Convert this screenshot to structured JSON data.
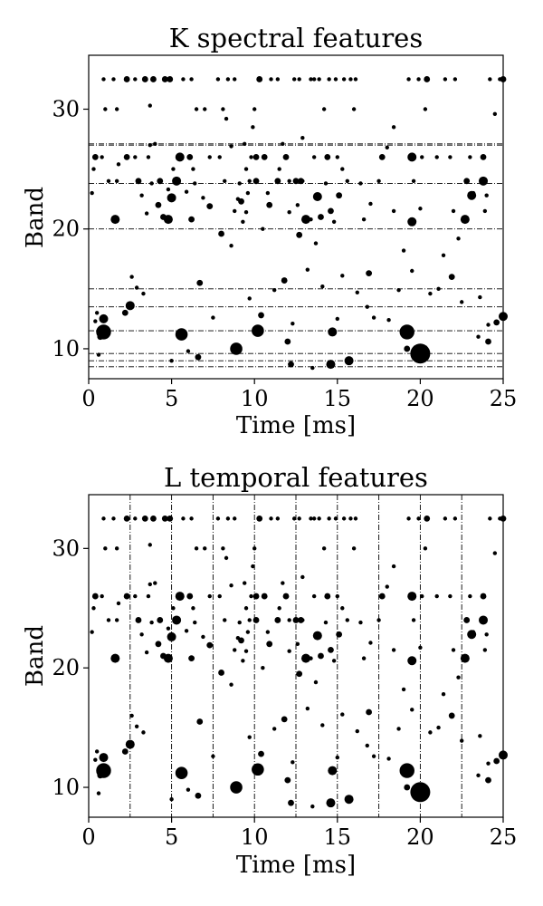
{
  "chart_data": [
    {
      "type": "scatter",
      "title": "K spectral features",
      "xlabel": "Time [ms]",
      "ylabel": "Band",
      "xlim": [
        0,
        25
      ],
      "ylim": [
        7.5,
        34.5
      ],
      "xticks": [
        0,
        5,
        10,
        15,
        20,
        25
      ],
      "yticks": [
        10,
        20,
        30
      ],
      "grid": false,
      "reference_lines": {
        "orientation": "horizontal",
        "style": "dash-dot",
        "values": [
          8.5,
          9,
          9.6,
          11.5,
          13.5,
          15,
          20,
          23.8,
          27,
          27.1
        ]
      }
    },
    {
      "type": "scatter",
      "title": "L temporal features",
      "xlabel": "Time [ms]",
      "ylabel": "Band",
      "xlim": [
        0,
        25
      ],
      "ylim": [
        7.5,
        34.5
      ],
      "xticks": [
        0,
        5,
        10,
        15,
        20,
        25
      ],
      "yticks": [
        10,
        20,
        30
      ],
      "grid": false,
      "reference_lines": {
        "orientation": "vertical",
        "style": "dash-dot",
        "values": [
          2.5,
          5,
          7.5,
          10,
          12.5,
          15,
          17.5,
          20,
          22.5
        ]
      }
    }
  ],
  "points": [
    [
      0.2,
      23,
      1
    ],
    [
      0.3,
      25,
      1
    ],
    [
      0.4,
      26,
      2
    ],
    [
      0.5,
      13,
      1
    ],
    [
      0.6,
      9.5,
      1
    ],
    [
      0.7,
      11,
      2
    ],
    [
      0.8,
      26,
      1
    ],
    [
      0.9,
      12.5,
      3
    ],
    [
      0.9,
      11.4,
      5
    ],
    [
      0.9,
      32.5,
      1
    ],
    [
      1.0,
      30,
      1
    ],
    [
      1.2,
      24,
      1
    ],
    [
      1.5,
      32.5,
      1
    ],
    [
      1.6,
      20.8,
      3
    ],
    [
      1.7,
      30,
      1
    ],
    [
      1.7,
      24,
      1
    ],
    [
      2.2,
      13,
      2
    ],
    [
      2.3,
      26,
      2
    ],
    [
      2.3,
      32.5,
      2
    ],
    [
      2.5,
      13.6,
      3
    ],
    [
      2.6,
      16,
      1
    ],
    [
      2.8,
      26,
      1
    ],
    [
      2.8,
      32.5,
      1
    ],
    [
      3.0,
      24,
      2
    ],
    [
      3.2,
      22.8,
      1
    ],
    [
      3.4,
      32.5,
      2
    ],
    [
      3.5,
      21.3,
      1
    ],
    [
      3.6,
      26,
      1
    ],
    [
      3.7,
      27,
      1
    ],
    [
      3.8,
      23.8,
      1
    ],
    [
      3.9,
      32.5,
      2
    ],
    [
      4.0,
      27.1,
      1
    ],
    [
      4.2,
      22,
      2
    ],
    [
      4.3,
      24,
      2
    ],
    [
      4.5,
      21,
      2
    ],
    [
      4.6,
      32.5,
      2
    ],
    [
      4.8,
      20.8,
      3
    ],
    [
      4.8,
      23.3,
      1
    ],
    [
      4.9,
      32.5,
      2
    ],
    [
      5.0,
      22.6,
      3
    ],
    [
      5.1,
      25,
      1
    ],
    [
      5.0,
      9,
      1
    ],
    [
      5.3,
      24,
      3
    ],
    [
      5.5,
      26,
      3
    ],
    [
      5.6,
      11.2,
      4
    ],
    [
      5.7,
      32.5,
      1
    ],
    [
      6.0,
      9.8,
      1
    ],
    [
      6.1,
      26,
      2
    ],
    [
      6.2,
      20.8,
      2
    ],
    [
      6.2,
      32.5,
      1
    ],
    [
      6.3,
      25,
      1
    ],
    [
      6.4,
      23.8,
      1
    ],
    [
      6.5,
      30,
      1
    ],
    [
      6.6,
      9.3,
      2
    ],
    [
      7.0,
      30,
      1
    ],
    [
      7.3,
      21.9,
      2
    ],
    [
      7.3,
      26,
      1
    ],
    [
      7.5,
      12.6,
      1
    ],
    [
      7.8,
      32.5,
      1
    ],
    [
      7.9,
      26,
      1
    ],
    [
      8.0,
      19.6,
      2
    ],
    [
      8.1,
      30,
      1
    ],
    [
      8.2,
      24,
      1
    ],
    [
      8.4,
      32.5,
      1
    ],
    [
      8.6,
      18.6,
      1
    ],
    [
      8.8,
      32.5,
      1
    ],
    [
      8.8,
      21.5,
      1
    ],
    [
      8.9,
      10,
      4
    ],
    [
      9.0,
      22.5,
      1
    ],
    [
      9.1,
      23.8,
      1
    ],
    [
      9.2,
      22.3,
      2
    ],
    [
      9.3,
      20.6,
      1
    ],
    [
      9.4,
      27.1,
      1
    ],
    [
      9.5,
      25,
      1
    ],
    [
      9.5,
      21.4,
      1
    ],
    [
      9.6,
      23,
      1
    ],
    [
      9.7,
      24,
      1
    ],
    [
      9.8,
      26,
      1
    ],
    [
      9.9,
      28.5,
      1
    ],
    [
      10.0,
      30,
      1
    ],
    [
      10.1,
      24,
      2
    ],
    [
      10.1,
      26,
      2
    ],
    [
      10.2,
      11.5,
      4
    ],
    [
      10.3,
      32.5,
      2
    ],
    [
      10.4,
      12.8,
      2
    ],
    [
      10.5,
      20,
      1
    ],
    [
      10.6,
      26,
      2
    ],
    [
      10.8,
      23,
      1
    ],
    [
      10.9,
      22,
      2
    ],
    [
      11.0,
      32.5,
      1
    ],
    [
      11.4,
      24,
      2
    ],
    [
      11.4,
      32.5,
      1
    ],
    [
      11.5,
      25,
      1
    ],
    [
      11.7,
      27.1,
      1
    ],
    [
      11.9,
      26,
      2
    ],
    [
      12.0,
      10.6,
      2
    ],
    [
      12.1,
      24,
      1
    ],
    [
      12.1,
      21.4,
      1
    ],
    [
      12.2,
      8.7,
      2
    ],
    [
      12.4,
      32.5,
      1
    ],
    [
      12.5,
      24,
      2
    ],
    [
      12.6,
      22,
      1
    ],
    [
      12.7,
      19.5,
      2
    ],
    [
      12.7,
      32.5,
      1
    ],
    [
      12.8,
      24,
      2
    ],
    [
      12.9,
      24,
      1
    ],
    [
      13.1,
      20.8,
      3
    ],
    [
      13.4,
      20.8,
      1
    ],
    [
      13.4,
      32.5,
      1
    ],
    [
      13.5,
      8.4,
      1
    ],
    [
      13.6,
      32.5,
      1
    ],
    [
      13.6,
      26,
      1
    ],
    [
      13.7,
      18.8,
      1
    ],
    [
      13.8,
      22.7,
      3
    ],
    [
      13.9,
      32.5,
      1
    ],
    [
      14.0,
      21,
      2
    ],
    [
      14.2,
      30,
      1
    ],
    [
      14.3,
      23.8,
      1
    ],
    [
      14.4,
      26,
      2
    ],
    [
      14.5,
      32.5,
      1
    ],
    [
      14.6,
      8.7,
      3
    ],
    [
      14.6,
      21.5,
      2
    ],
    [
      14.7,
      11.4,
      3
    ],
    [
      14.8,
      20.6,
      1
    ],
    [
      14.9,
      32.5,
      1
    ],
    [
      15.0,
      26,
      1
    ],
    [
      15.0,
      12.5,
      1
    ],
    [
      15.1,
      22.8,
      2
    ],
    [
      15.3,
      25,
      1
    ],
    [
      15.4,
      32.5,
      1
    ],
    [
      15.6,
      24,
      1
    ],
    [
      15.7,
      9,
      3
    ],
    [
      15.8,
      32.5,
      1
    ],
    [
      16.0,
      30,
      1
    ],
    [
      16.1,
      32.5,
      1
    ],
    [
      16.4,
      23.8,
      1
    ],
    [
      16.6,
      20.8,
      1
    ],
    [
      16.8,
      13.5,
      1
    ],
    [
      17.0,
      22.1,
      1
    ],
    [
      17.5,
      24,
      1
    ],
    [
      17.7,
      26,
      2
    ],
    [
      18.1,
      12.4,
      1
    ],
    [
      18.4,
      28.5,
      1
    ],
    [
      18.4,
      21.5,
      1
    ],
    [
      19.0,
      18.2,
      1
    ],
    [
      19.3,
      32.5,
      1
    ],
    [
      19.5,
      16.5,
      1
    ],
    [
      19.5,
      20.6,
      3
    ],
    [
      19.5,
      26,
      3
    ],
    [
      19.6,
      24,
      1
    ],
    [
      19.2,
      11.4,
      5
    ],
    [
      19.2,
      10,
      2
    ],
    [
      19.9,
      32.5,
      1
    ],
    [
      20.0,
      21.7,
      1
    ],
    [
      20.0,
      9.6,
      7
    ],
    [
      20.1,
      26,
      1
    ],
    [
      20.3,
      30,
      1
    ],
    [
      20.4,
      32.5,
      2
    ],
    [
      21.0,
      26,
      1
    ],
    [
      21.1,
      15,
      1
    ],
    [
      21.5,
      32.5,
      1
    ],
    [
      21.8,
      26,
      1
    ],
    [
      22.0,
      21.5,
      1
    ],
    [
      22.1,
      32.5,
      1
    ],
    [
      22.5,
      13.9,
      1
    ],
    [
      22.7,
      20.8,
      3
    ],
    [
      22.8,
      24,
      2
    ],
    [
      23.0,
      26,
      1
    ],
    [
      23.1,
      22.8,
      3
    ],
    [
      23.2,
      23,
      1
    ],
    [
      23.5,
      11,
      1
    ],
    [
      23.8,
      26,
      2
    ],
    [
      23.8,
      24,
      3
    ],
    [
      23.9,
      21.5,
      1
    ],
    [
      24.0,
      22.8,
      1
    ],
    [
      24.1,
      12,
      1
    ],
    [
      24.1,
      10.6,
      2
    ],
    [
      24.2,
      32.5,
      1
    ],
    [
      24.6,
      12.2,
      2
    ],
    [
      24.8,
      32.5,
      1
    ],
    [
      25.0,
      32.5,
      2
    ],
    [
      25.0,
      12.7,
      3
    ],
    [
      0.4,
      12.3,
      1
    ],
    [
      1.8,
      25.4,
      1
    ],
    [
      2.9,
      15.1,
      1
    ],
    [
      3.3,
      14.6,
      1
    ],
    [
      5.9,
      23.1,
      1
    ],
    [
      6.9,
      22.6,
      1
    ],
    [
      8.3,
      29.2,
      1
    ],
    [
      9.7,
      14.2,
      1
    ],
    [
      11.2,
      14.9,
      1
    ],
    [
      12.3,
      12.1,
      1
    ],
    [
      13.2,
      16.6,
      1
    ],
    [
      14.1,
      15.2,
      1
    ],
    [
      15.3,
      16.1,
      1
    ],
    [
      16.2,
      14.7,
      1
    ],
    [
      17.2,
      12.6,
      1
    ],
    [
      18.7,
      14.9,
      1
    ],
    [
      20.6,
      14.6,
      1
    ],
    [
      21.4,
      17.8,
      1
    ],
    [
      22.3,
      19.2,
      1
    ],
    [
      23.6,
      14.3,
      1
    ],
    [
      6.7,
      15.5,
      2
    ],
    [
      11.8,
      15.7,
      2
    ],
    [
      16.9,
      16.3,
      2
    ],
    [
      21.9,
      16.0,
      2
    ],
    [
      8.6,
      26.9,
      1
    ],
    [
      18.0,
      26.8,
      1
    ],
    [
      12.9,
      27.6,
      1
    ],
    [
      3.7,
      30.3,
      1
    ],
    [
      24.5,
      29.6,
      1
    ]
  ]
}
